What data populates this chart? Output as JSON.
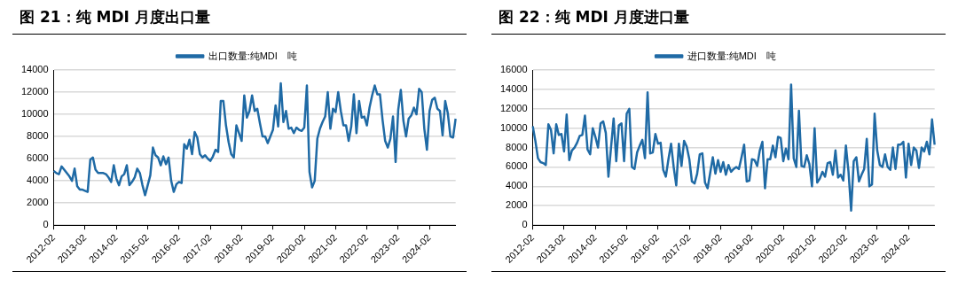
{
  "chart_data": [
    {
      "type": "line",
      "title": "图 21：纯 MDI 月度出口量",
      "legend": "top",
      "grid": "y",
      "marker": "none",
      "line_style": "solid",
      "ylim": [
        0,
        14000
      ],
      "yticks": [
        0,
        2000,
        4000,
        6000,
        8000,
        10000,
        12000,
        14000
      ],
      "categories": [
        "2012-02",
        null,
        null,
        null,
        null,
        null,
        null,
        null,
        null,
        null,
        null,
        null,
        "2013-02",
        null,
        null,
        null,
        null,
        null,
        null,
        null,
        null,
        null,
        null,
        null,
        "2014-02",
        null,
        null,
        null,
        null,
        null,
        null,
        null,
        null,
        null,
        null,
        null,
        "2015-02",
        null,
        null,
        null,
        null,
        null,
        null,
        null,
        null,
        null,
        null,
        null,
        "2016-02",
        null,
        null,
        null,
        null,
        null,
        null,
        null,
        null,
        null,
        null,
        null,
        "2017-02",
        null,
        null,
        null,
        null,
        null,
        null,
        null,
        null,
        null,
        null,
        null,
        "2018-02",
        null,
        null,
        null,
        null,
        null,
        null,
        null,
        null,
        null,
        null,
        null,
        "2019-02",
        null,
        null,
        null,
        null,
        null,
        null,
        null,
        null,
        null,
        null,
        null,
        "2020-02",
        null,
        null,
        null,
        null,
        null,
        null,
        null,
        null,
        null,
        null,
        null,
        "2021-02",
        null,
        null,
        null,
        null,
        null,
        null,
        null,
        null,
        null,
        null,
        null,
        "2022-02",
        null,
        null,
        null,
        null,
        null,
        null,
        null,
        null,
        null,
        null,
        null,
        "2023-02",
        null,
        null,
        null,
        null,
        null,
        null,
        null,
        null,
        null,
        null,
        null,
        "2024-02",
        null,
        null,
        null,
        null,
        null,
        null,
        null,
        null,
        null,
        null
      ],
      "series": [
        {
          "name": "出口数量:纯MDI　吨",
          "color": "#1f6aa5",
          "values": [
            4900,
            4700,
            4600,
            5300,
            5000,
            4700,
            4400,
            4000,
            5100,
            3500,
            3200,
            3200,
            3100,
            3000,
            5900,
            6100,
            5000,
            4700,
            4700,
            4700,
            4600,
            4300,
            3900,
            5400,
            4200,
            3600,
            4400,
            4600,
            5400,
            3600,
            3900,
            4300,
            5100,
            4700,
            3600,
            2700,
            3600,
            4500,
            7000,
            6300,
            6100,
            5400,
            6200,
            5500,
            6100,
            4000,
            3000,
            3700,
            3900,
            3800,
            7300,
            6900,
            7700,
            6400,
            8400,
            7900,
            6400,
            6100,
            6300,
            6000,
            5800,
            6200,
            6800,
            6600,
            11200,
            11200,
            9000,
            7500,
            6400,
            6100,
            9000,
            8300,
            7600,
            11700,
            9700,
            10300,
            11700,
            10300,
            10500,
            9200,
            8000,
            8000,
            7400,
            8000,
            8600,
            10800,
            8900,
            12800,
            9300,
            10300,
            8700,
            8800,
            8300,
            8800,
            8600,
            8500,
            8800,
            12600,
            4800,
            3400,
            4000,
            7800,
            8700,
            9300,
            9800,
            12000,
            8700,
            10500,
            10200,
            12000,
            10300,
            9000,
            9000,
            7600,
            8900,
            11800,
            8300,
            11200,
            9700,
            9800,
            9000,
            10600,
            11700,
            12600,
            11800,
            11800,
            9500,
            7600,
            7000,
            7800,
            9800,
            5700,
            10400,
            12200,
            9400,
            8000,
            9600,
            9900,
            10600,
            10000,
            12300,
            12000,
            8700,
            6800,
            10300,
            11300,
            11500,
            10500,
            10300,
            8100,
            11200,
            10100,
            8000,
            7900,
            9600
          ]
        }
      ]
    },
    {
      "type": "line",
      "title": "图 22：纯 MDI 月度进口量",
      "legend": "top",
      "grid": "y",
      "marker": "none",
      "line_style": "solid",
      "ylim": [
        0,
        16000
      ],
      "yticks": [
        0,
        2000,
        4000,
        6000,
        8000,
        10000,
        12000,
        14000,
        16000
      ],
      "categories": [
        "2012-02",
        null,
        null,
        null,
        null,
        null,
        null,
        null,
        null,
        null,
        null,
        null,
        "2013-02",
        null,
        null,
        null,
        null,
        null,
        null,
        null,
        null,
        null,
        null,
        null,
        "2014-02",
        null,
        null,
        null,
        null,
        null,
        null,
        null,
        null,
        null,
        null,
        null,
        "2015-02",
        null,
        null,
        null,
        null,
        null,
        null,
        null,
        null,
        null,
        null,
        null,
        "2016-02",
        null,
        null,
        null,
        null,
        null,
        null,
        null,
        null,
        null,
        null,
        null,
        "2017-02",
        null,
        null,
        null,
        null,
        null,
        null,
        null,
        null,
        null,
        null,
        null,
        "2018-02",
        null,
        null,
        null,
        null,
        null,
        null,
        null,
        null,
        null,
        null,
        null,
        "2019-02",
        null,
        null,
        null,
        null,
        null,
        null,
        null,
        null,
        null,
        null,
        null,
        "2020-02",
        null,
        null,
        null,
        null,
        null,
        null,
        null,
        null,
        null,
        null,
        null,
        "2021-02",
        null,
        null,
        null,
        null,
        null,
        null,
        null,
        null,
        null,
        null,
        null,
        "2022-02",
        null,
        null,
        null,
        null,
        null,
        null,
        null,
        null,
        null,
        null,
        null,
        "2023-02",
        null,
        null,
        null,
        null,
        null,
        null,
        null,
        null,
        null,
        null,
        null,
        "2024-02",
        null,
        null,
        null,
        null,
        null,
        null,
        null,
        null,
        null,
        null
      ],
      "series": [
        {
          "name": "进口数量:纯MDI　吨",
          "color": "#1f6aa5",
          "values": [
            10200,
            8700,
            6900,
            6500,
            6400,
            6200,
            10400,
            9800,
            7400,
            10400,
            9300,
            9400,
            7600,
            11400,
            6700,
            7700,
            8000,
            8500,
            9200,
            9300,
            11300,
            7800,
            7300,
            10000,
            9100,
            8000,
            10500,
            10700,
            9500,
            5000,
            8000,
            11000,
            6600,
            10300,
            10500,
            6600,
            11500,
            12000,
            6000,
            5800,
            7500,
            8200,
            8800,
            6900,
            13700,
            7400,
            7500,
            9400,
            8400,
            8500,
            5700,
            5000,
            6800,
            8400,
            6000,
            4100,
            8400,
            6100,
            8700,
            8100,
            6800,
            4500,
            4300,
            5300,
            7300,
            7400,
            4400,
            3800,
            5400,
            7000,
            5300,
            6700,
            5500,
            6500,
            5200,
            6200,
            5500,
            5800,
            6000,
            5800,
            7000,
            8300,
            4500,
            4600,
            6800,
            6700,
            6100,
            7700,
            8600,
            3800,
            6800,
            6800,
            8200,
            7000,
            9100,
            9000,
            6600,
            7900,
            6800,
            14500,
            6900,
            6000,
            11800,
            6100,
            6000,
            7200,
            6300,
            4000,
            10000,
            4400,
            4800,
            5500,
            5000,
            6400,
            6500,
            5200,
            7700,
            4900,
            5200,
            4600,
            8200,
            5500,
            1500,
            6600,
            7000,
            4500,
            5200,
            5800,
            8900,
            4000,
            4200,
            11500,
            7700,
            6200,
            6000,
            7300,
            6000,
            5700,
            8000,
            5800,
            8300,
            8300,
            8600,
            4900,
            8400,
            6200,
            8000,
            7700,
            5900,
            8000,
            7600,
            8600,
            7300,
            10900,
            8300
          ]
        }
      ]
    }
  ]
}
